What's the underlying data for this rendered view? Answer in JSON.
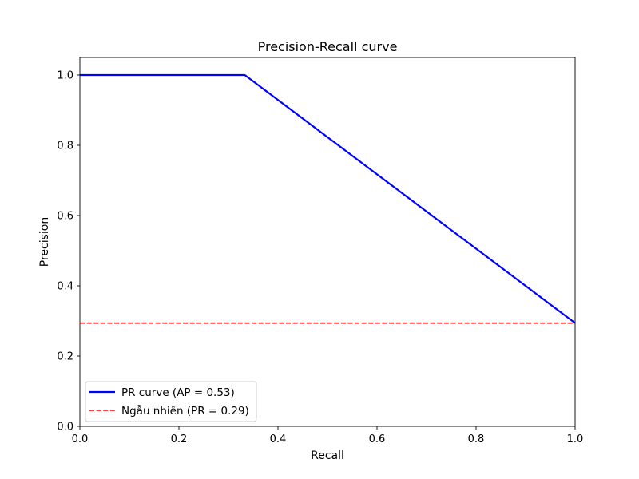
{
  "chart_data": {
    "type": "line",
    "title": "Precision-Recall curve",
    "xlabel": "Recall",
    "ylabel": "Precision",
    "xlim": [
      0.0,
      1.0
    ],
    "ylim": [
      0.0,
      1.05
    ],
    "xticks": [
      0.0,
      0.2,
      0.4,
      0.6,
      0.8,
      1.0
    ],
    "yticks": [
      0.0,
      0.2,
      0.4,
      0.6,
      0.8,
      1.0
    ],
    "xtick_labels": [
      "0.0",
      "0.2",
      "0.4",
      "0.6",
      "0.8",
      "1.0"
    ],
    "ytick_labels": [
      "0.0",
      "0.2",
      "0.4",
      "0.6",
      "0.8",
      "1.0"
    ],
    "grid": false,
    "legend_position": "lower-left",
    "series": [
      {
        "name": "PR curve (AP = 0.53)",
        "color": "#0000ff",
        "style": "solid",
        "x": [
          0.0,
          0.333,
          1.0
        ],
        "y": [
          1.0,
          1.0,
          0.294
        ]
      },
      {
        "name": "Ngẫu nhiên (PR = 0.29)",
        "color": "#ff0000",
        "style": "dashed",
        "x": [
          0.0,
          1.0
        ],
        "y": [
          0.294,
          0.294
        ]
      }
    ]
  }
}
